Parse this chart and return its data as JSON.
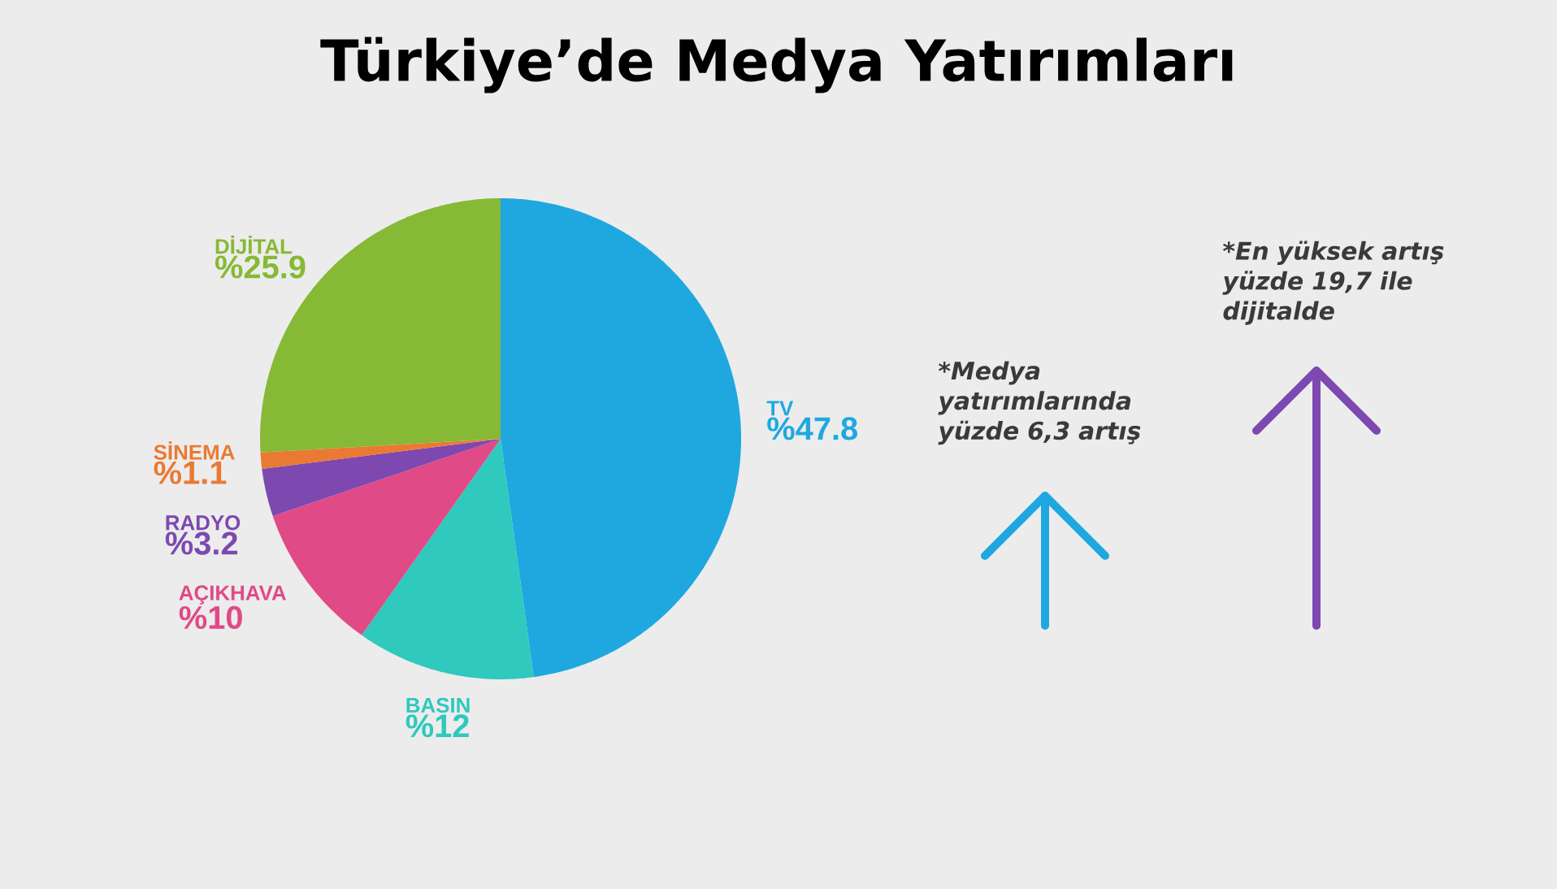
{
  "chart_data": {
    "type": "pie",
    "title": "Türkiye’de Medya Yatırımları",
    "categories": [
      "TV",
      "BASIN",
      "AÇIKHAVA",
      "RADYO",
      "SİNEMA",
      "DİJİTAL"
    ],
    "values": [
      47.8,
      12,
      10,
      3.2,
      1.1,
      25.9
    ],
    "value_labels": [
      "%47.8",
      "%12",
      "%10",
      "%3.2",
      "%1.1",
      "%25.9"
    ],
    "colors": [
      "#1fa8df",
      "#2fc9bd",
      "#e04a86",
      "#7d48b0",
      "#ea7a32",
      "#86b935"
    ],
    "annotations": [
      "*Medya yatırımlarında yüzde 6,3 artış",
      "*En yüksek artış yüzde 19,7 ile dijitalde"
    ]
  }
}
